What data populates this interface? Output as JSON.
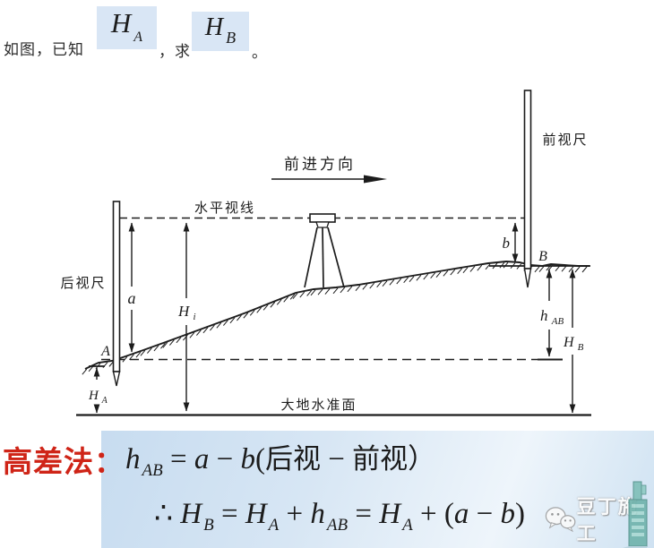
{
  "header": {
    "prefix": "如图，已知",
    "given": {
      "base": "H",
      "sub": "A"
    },
    "mid": "，求",
    "find": {
      "base": "H",
      "sub": "B"
    },
    "period": "。"
  },
  "diagram": {
    "direction_label": "前进方向",
    "sight_line_label": "水平视线",
    "back_rod_label": "后视尺",
    "front_rod_label": "前视尺",
    "datum_label": "大地水准面",
    "point_a": "A",
    "point_b": "B",
    "reading_a": "a",
    "reading_b": "b",
    "instrument_height": {
      "base": "H",
      "sub": "i"
    },
    "height_diff": {
      "base": "h",
      "sub": "AB"
    },
    "elevation_a": {
      "base": "H",
      "sub": "A"
    },
    "elevation_b": {
      "base": "H",
      "sub": "B"
    }
  },
  "formulas": {
    "method_label": "高差法：",
    "line1": {
      "h": "h",
      "h_sub": "AB",
      "eq": " = ",
      "a": "a",
      "minus": " − ",
      "b": "b",
      "open_paren": "(",
      "backsight": "后视",
      "minus2": " − ",
      "foresight": "前视",
      "close_paren": "）"
    },
    "line2": {
      "therefore": "∴ ",
      "hb": "H",
      "hb_sub": "B",
      "eq1": " = ",
      "ha": "H",
      "ha_sub": "A",
      "plus1": " + ",
      "h": "h",
      "h_sub": "AB",
      "eq2": " = ",
      "ha2": "H",
      "ha2_sub": "A",
      "plus2": " + (",
      "a": "a",
      "minus": " − ",
      "b": "b",
      "close_paren": ")"
    }
  },
  "watermark": {
    "text": "豆丁施工"
  },
  "colors": {
    "accent_red": "#cf2417",
    "highlight_blue": "#d9e6f5",
    "panel_blue": "#c9ddf0",
    "ink": "#1c1c1c",
    "watermark_teal": "#6fb3ac"
  }
}
